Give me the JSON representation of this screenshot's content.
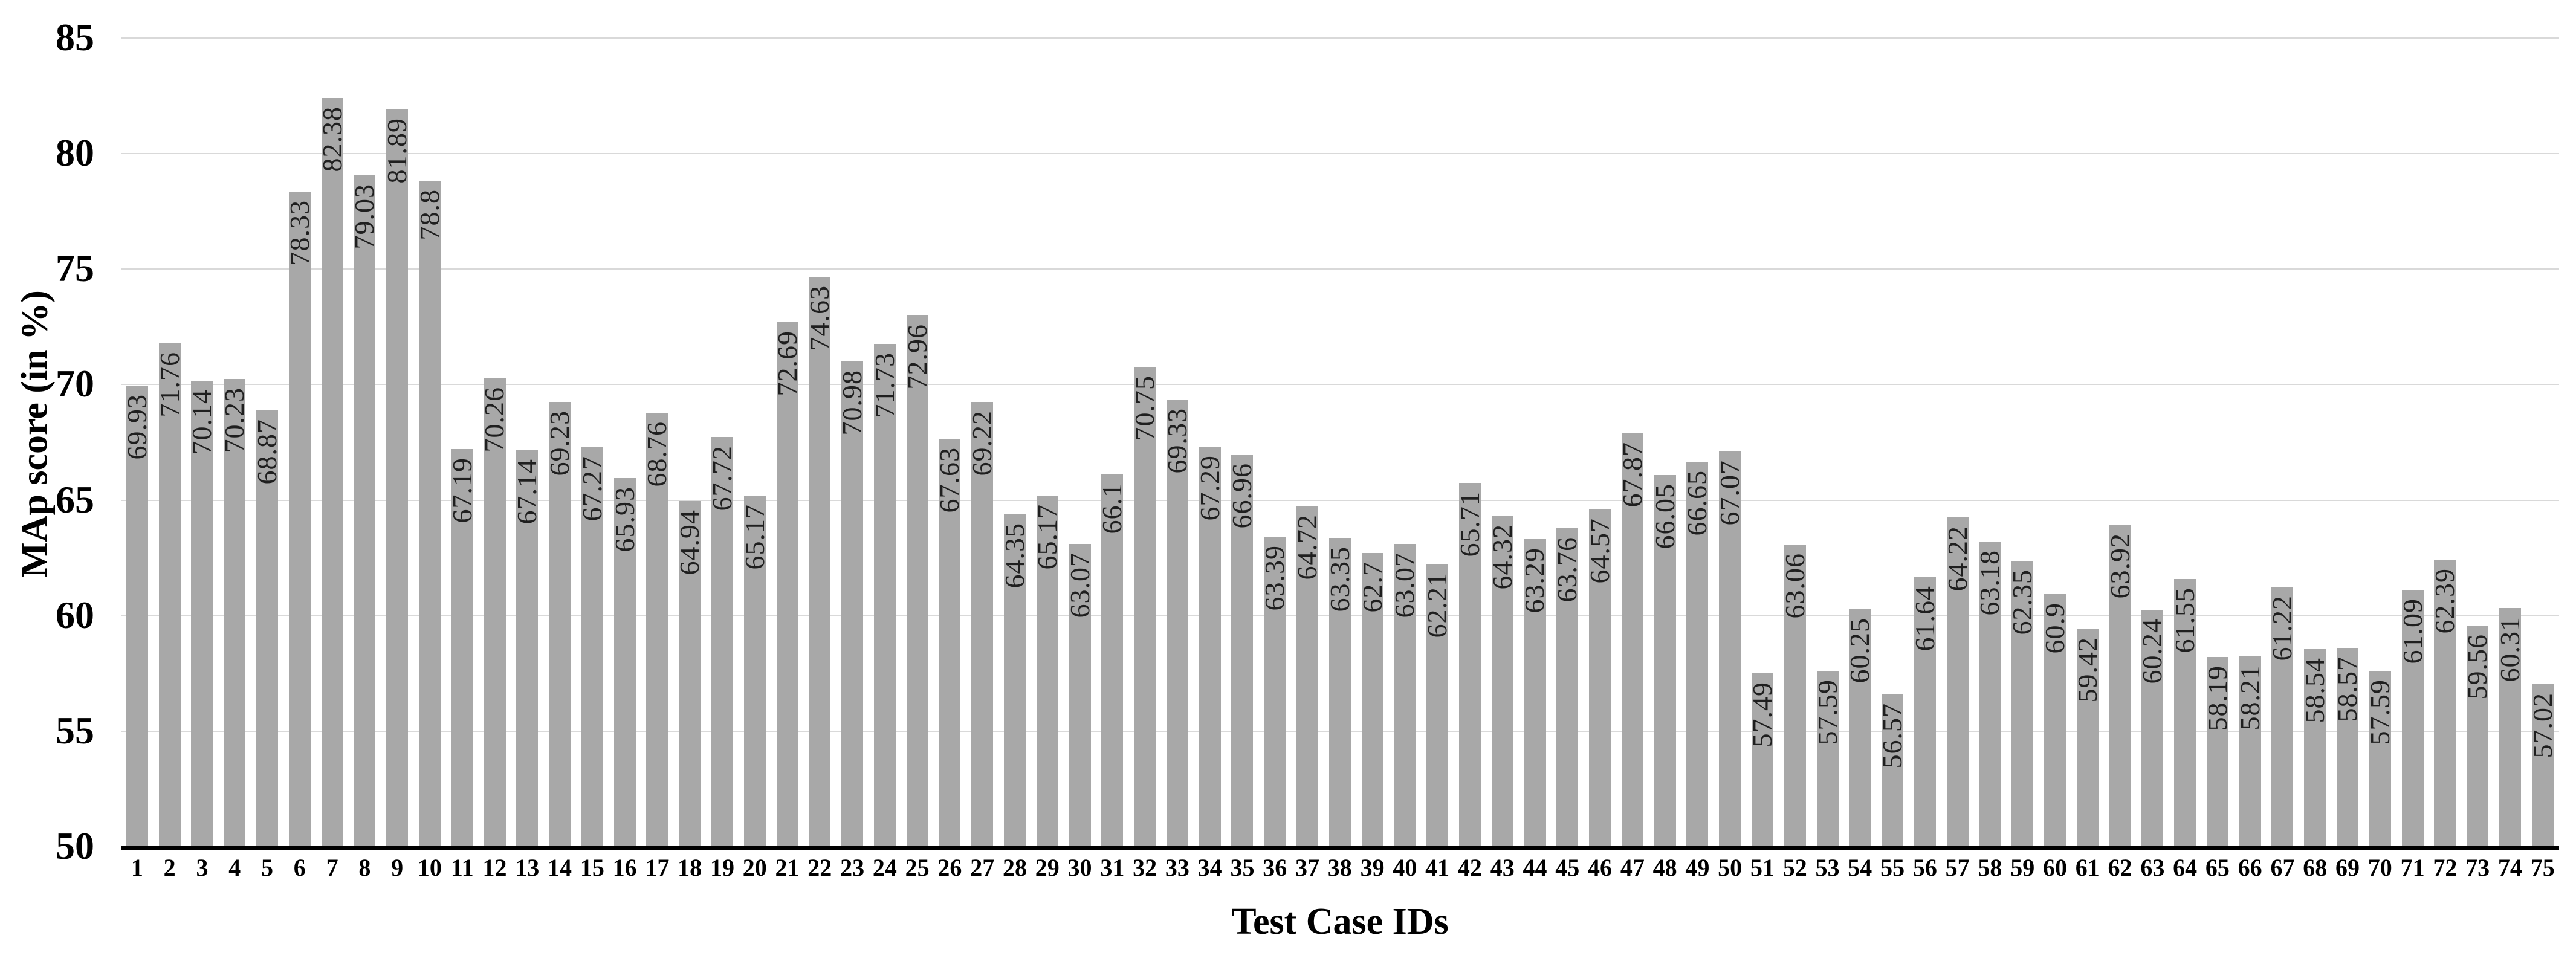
{
  "chart_data": {
    "type": "bar",
    "title": "",
    "xlabel": "Test Case IDs",
    "ylabel": "MAp score (in %)",
    "categories": [
      "1",
      "2",
      "3",
      "4",
      "5",
      "6",
      "7",
      "8",
      "9",
      "10",
      "11",
      "12",
      "13",
      "14",
      "15",
      "16",
      "17",
      "18",
      "19",
      "20",
      "21",
      "22",
      "23",
      "24",
      "25",
      "26",
      "27",
      "28",
      "29",
      "30",
      "31",
      "32",
      "33",
      "34",
      "35",
      "36",
      "37",
      "38",
      "39",
      "40",
      "41",
      "42",
      "43",
      "44",
      "45",
      "46",
      "47",
      "48",
      "49",
      "50",
      "51",
      "52",
      "53",
      "54",
      "55",
      "56",
      "57",
      "58",
      "59",
      "60",
      "61",
      "62",
      "63",
      "64",
      "65",
      "66",
      "67",
      "68",
      "69",
      "70",
      "71",
      "72",
      "73",
      "74",
      "75"
    ],
    "values": [
      69.93,
      71.76,
      70.14,
      70.23,
      68.87,
      78.33,
      82.38,
      79.03,
      81.89,
      78.8,
      67.19,
      70.26,
      67.14,
      69.23,
      67.27,
      65.93,
      68.76,
      64.94,
      67.72,
      65.17,
      72.69,
      74.63,
      70.98,
      71.73,
      72.96,
      67.63,
      69.22,
      64.35,
      65.17,
      63.07,
      66.1,
      70.75,
      69.33,
      67.29,
      66.96,
      63.39,
      64.72,
      63.35,
      62.7,
      63.07,
      62.21,
      65.71,
      64.32,
      63.29,
      63.76,
      64.57,
      67.87,
      66.05,
      66.65,
      67.07,
      57.49,
      63.06,
      57.59,
      60.25,
      56.57,
      61.64,
      64.22,
      63.18,
      62.35,
      60.9,
      59.42,
      63.92,
      60.24,
      61.55,
      58.19,
      58.21,
      61.22,
      58.54,
      58.57,
      57.59,
      61.09,
      62.39,
      59.56,
      60.31,
      57.02
    ],
    "value_labels": [
      "69.93",
      "71.76",
      "70.14",
      "70.23",
      "68.87",
      "78.33",
      "82.38",
      "79.03",
      "81.89",
      "78.8",
      "67.19",
      "70.26",
      "67.14",
      "69.23",
      "67.27",
      "65.93",
      "68.76",
      "64.94",
      "67.72",
      "65.17",
      "72.69",
      "74.63",
      "70.98",
      "71.73",
      "72.96",
      "67.63",
      "69.22",
      "64.35",
      "65.17",
      "63.07",
      "66.1",
      "70.75",
      "69.33",
      "67.29",
      "66.96",
      "63.39",
      "64.72",
      "63.35",
      "62.7",
      "63.07",
      "62.21",
      "65.71",
      "64.32",
      "63.29",
      "63.76",
      "64.57",
      "67.87",
      "66.05",
      "66.65",
      "67.07",
      "57.49",
      "63.06",
      "57.59",
      "60.25",
      "56.57",
      "61.64",
      "64.22",
      "63.18",
      "62.35",
      "60.9",
      "59.42",
      "63.92",
      "60.24",
      "61.55",
      "58.19",
      "58.21",
      "61.22",
      "58.54",
      "58.57",
      "57.59",
      "61.09",
      "62.39",
      "59.56",
      "60.31",
      "57.02"
    ],
    "ylim": [
      50,
      85
    ],
    "yticks": [
      85,
      80,
      75,
      70,
      65,
      60,
      55,
      50
    ],
    "grid": "horizontal-major",
    "legend": "none",
    "value_label_rotation": "90deg-bottom-to-top",
    "colors": {
      "bar_fill": "#a8a8a8",
      "value_label": "#1f1f1f",
      "gridline": "#d9d9d9",
      "axis_line": "#000000",
      "text": "#000000",
      "background": "#ffffff"
    }
  }
}
